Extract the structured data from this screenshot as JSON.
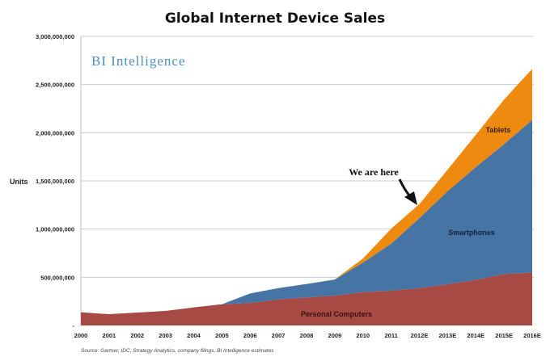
{
  "chart_data": {
    "type": "area",
    "stacked": true,
    "title": "Global Internet Device Sales",
    "ylabel": "Units",
    "xlabel": "",
    "ylim": [
      0,
      3000000000
    ],
    "yticks": [
      0,
      500000000,
      1000000000,
      1500000000,
      2000000000,
      2500000000,
      3000000000
    ],
    "ytick_labels": [
      "-",
      "500,000,000",
      "1,000,000,000",
      "1,500,000,000",
      "2,000,000,000",
      "2,500,000,000",
      "3,000,000,000"
    ],
    "categories": [
      "2000",
      "2001",
      "2002",
      "2003",
      "2004",
      "2005",
      "2006",
      "2007",
      "2008",
      "2009",
      "2010",
      "2011",
      "2012E",
      "2013E",
      "2014E",
      "2015E",
      "2016E"
    ],
    "grid": true,
    "series": [
      {
        "name": "Personal Computers",
        "color": "#a84a44",
        "label_color": "#3a1010",
        "values": [
          137000000,
          117000000,
          134000000,
          151000000,
          187000000,
          220000000,
          234000000,
          270000000,
          290000000,
          310000000,
          346000000,
          360000000,
          388000000,
          427000000,
          472000000,
          533000000,
          550000000
        ]
      },
      {
        "name": "Smartphones",
        "color": "#4674a4",
        "label_color": "#0f2442",
        "values": [
          0,
          0,
          0,
          0,
          0,
          0,
          98000000,
          118000000,
          140000000,
          167000000,
          307000000,
          488000000,
          726000000,
          966000000,
          1172000000,
          1348000000,
          1583000000
        ]
      },
      {
        "name": "Tablets",
        "color": "#ee8a10",
        "label_color": "#3a2000",
        "values": [
          0,
          0,
          0,
          0,
          0,
          0,
          0,
          0,
          0,
          0,
          42000000,
          157000000,
          145000000,
          223000000,
          335000000,
          462000000,
          530000000
        ]
      }
    ],
    "annotations": [
      {
        "text": "We are here",
        "points_to": "2012E"
      }
    ],
    "logo": "BI Intelligence",
    "source": "Source: Gartner, IDC, Strategy Analytics, company filings, BI Intelligence estimates"
  }
}
